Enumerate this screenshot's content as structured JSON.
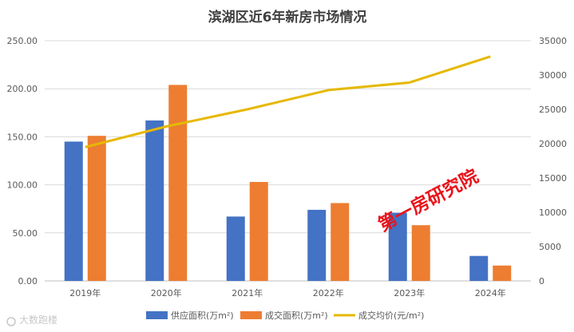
{
  "chart_data": {
    "type": "bar",
    "title": "滨湖区近6年新房市场情况",
    "categories": [
      "2019年",
      "2020年",
      "2021年",
      "2022年",
      "2023年",
      "2024年"
    ],
    "series": [
      {
        "name": "供应面积(万m²)",
        "type": "bar",
        "axis": "left",
        "color": "#4472c4",
        "values": [
          145,
          167,
          67,
          74,
          71,
          26
        ]
      },
      {
        "name": "成交面积(万m²)",
        "type": "bar",
        "axis": "left",
        "color": "#ed7d31",
        "values": [
          151,
          204,
          103,
          81,
          58,
          16
        ]
      },
      {
        "name": "成交均价(元/m²)",
        "type": "line",
        "axis": "right",
        "color": "#e6b800",
        "values": [
          19500,
          22500,
          25000,
          27800,
          28900,
          32700
        ]
      }
    ],
    "y_left": {
      "min": 0,
      "max": 250,
      "ticks": [
        "0.00",
        "50.00",
        "100.00",
        "150.00",
        "200.00",
        "250.00"
      ]
    },
    "y_right": {
      "min": 0,
      "max": 35000,
      "ticks": [
        "0",
        "5000",
        "10000",
        "15000",
        "20000",
        "25000",
        "30000",
        "35000"
      ]
    },
    "grid": true,
    "legend_position": "bottom"
  },
  "watermark": {
    "stamp_text": "第一房研究院",
    "stamp_color": "#e8141b",
    "corner_text": "大数跑楼"
  }
}
